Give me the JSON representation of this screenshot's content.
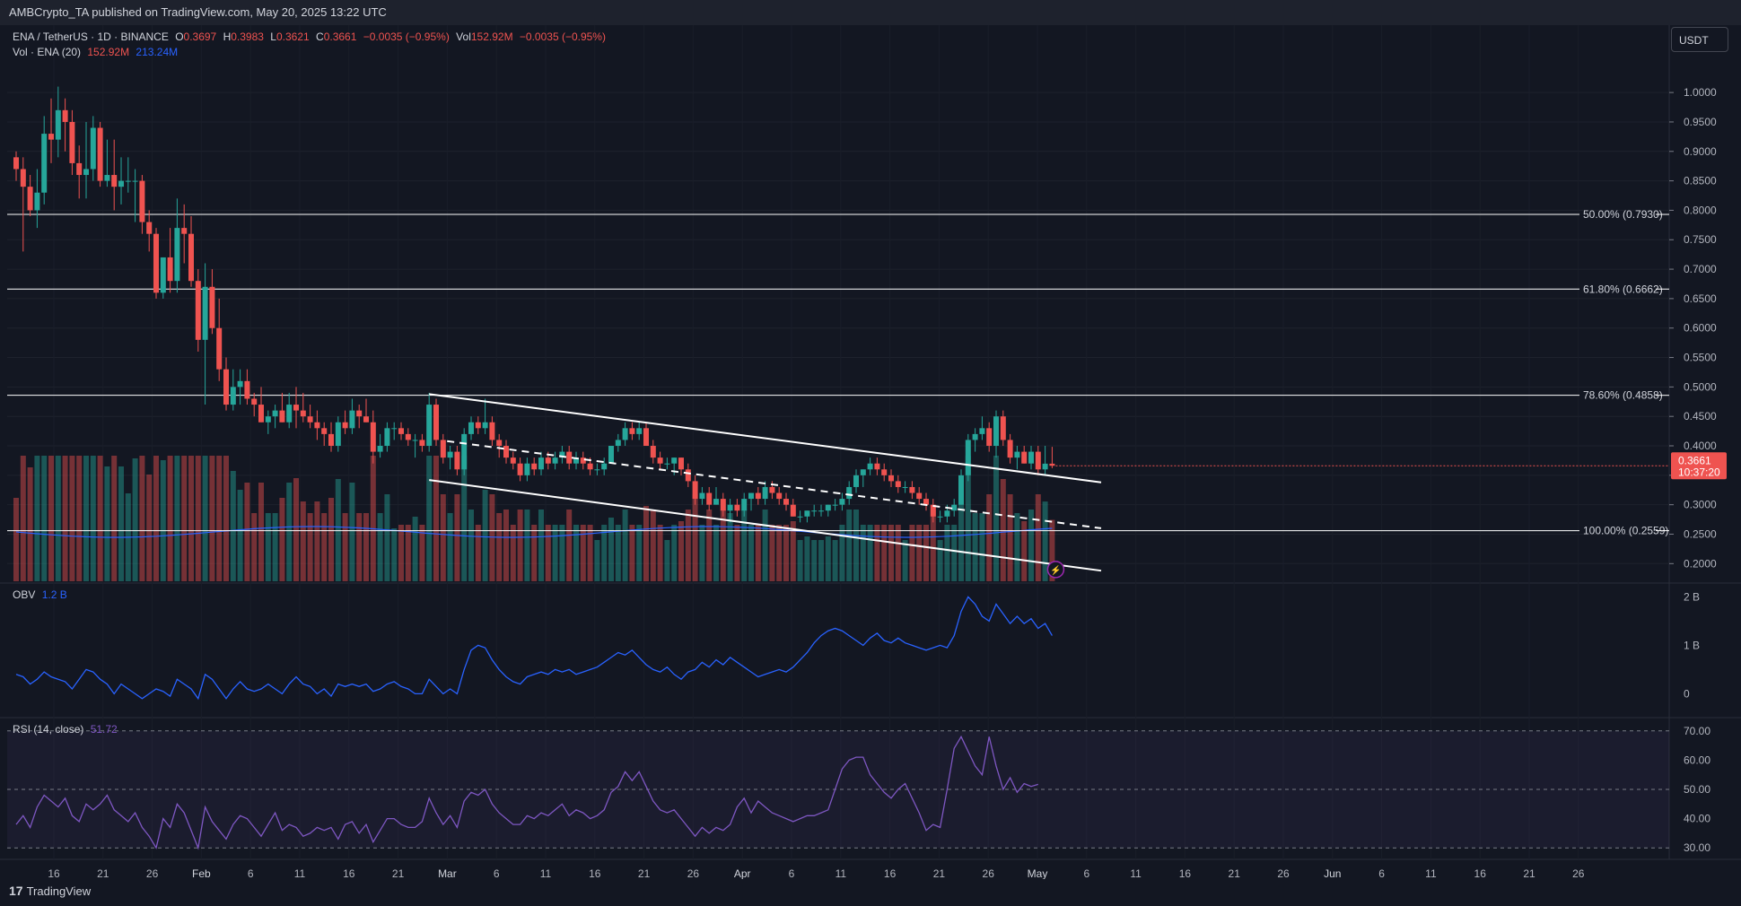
{
  "header": {
    "published": "AMBCrypto_TA published on TradingView.com, May 20, 2025 13:22 UTC"
  },
  "legend": {
    "symbol": "ENA / TetherUS · 1D · BINANCE",
    "o_label": "O",
    "o": "0.3697",
    "h_label": "H",
    "h": "0.3983",
    "l_label": "L",
    "l": "0.3621",
    "c_label": "C",
    "c": "0.3661",
    "change": "−0.0035 (−0.95%)",
    "vol_label": "Vol",
    "vol": "152.92M",
    "vol_change": "−0.0035 (−0.95%)",
    "vol_ind": "Vol · ENA (20)",
    "vol_val": "152.92M",
    "vol_ma": "213.24M",
    "obv_label": "OBV",
    "obv_val": "1.2 B",
    "rsi_label": "RSI (14, close)",
    "rsi_val": "51.72"
  },
  "currency": "USDT",
  "last_price": {
    "price": "0.3661",
    "countdown": "10:37:20"
  },
  "footer": {
    "logo_mark": "17",
    "logo_text": "TradingView"
  },
  "colors": {
    "up": "#26a69a",
    "down": "#ef5350",
    "background": "#131722",
    "obv": "#2962ff",
    "rsi": "#7e57c2",
    "fib": "#ffffff"
  },
  "chart_data": [
    {
      "type": "candlestick",
      "title": "ENA / TetherUS · 1D · BINANCE",
      "y_ticks": [
        "1.0000",
        "0.9500",
        "0.9000",
        "0.8500",
        "0.8000",
        "0.7500",
        "0.7000",
        "0.6500",
        "0.6000",
        "0.5500",
        "0.5000",
        "0.4500",
        "0.4000",
        "0.3500",
        "0.3000",
        "0.2500",
        "0.2000"
      ],
      "ylim": [
        0.17,
        1.02
      ],
      "x_ticks": [
        "16",
        "21",
        "26",
        "Feb",
        "6",
        "11",
        "16",
        "21",
        "Mar",
        "6",
        "11",
        "16",
        "21",
        "26",
        "Apr",
        "6",
        "11",
        "16",
        "21",
        "26",
        "May",
        "6",
        "11",
        "16",
        "21",
        "26",
        "Jun",
        "6",
        "11",
        "16",
        "21",
        "26"
      ],
      "fib_levels": [
        {
          "label": "50.00% (0.7930)",
          "value": 0.793
        },
        {
          "label": "61.80% (0.6662)",
          "value": 0.6662
        },
        {
          "label": "78.60% (0.4858)",
          "value": 0.4858
        },
        {
          "label": "100.00% (0.2559)",
          "value": 0.2559
        }
      ],
      "channel": {
        "upper": [
          [
            0,
            0.4878
          ],
          [
            0,
            0.338
          ]
        ],
        "lower": [
          [
            0,
            0.342
          ],
          [
            0,
            0.188
          ]
        ],
        "mid": [
          [
            0,
            0.408
          ],
          [
            0,
            0.26
          ]
        ],
        "start_index": 59,
        "end_index": 155
      },
      "candles": [
        [
          0.89,
          0.9,
          0.85,
          0.87
        ],
        [
          0.87,
          0.89,
          0.73,
          0.84
        ],
        [
          0.84,
          0.86,
          0.79,
          0.8
        ],
        [
          0.8,
          0.87,
          0.77,
          0.83
        ],
        [
          0.83,
          0.96,
          0.81,
          0.93
        ],
        [
          0.93,
          0.99,
          0.88,
          0.92
        ],
        [
          0.92,
          1.01,
          0.89,
          0.97
        ],
        [
          0.97,
          0.99,
          0.9,
          0.95
        ],
        [
          0.95,
          0.97,
          0.86,
          0.88
        ],
        [
          0.88,
          0.91,
          0.82,
          0.86
        ],
        [
          0.86,
          0.95,
          0.82,
          0.87
        ],
        [
          0.87,
          0.96,
          0.85,
          0.94
        ],
        [
          0.94,
          0.95,
          0.84,
          0.85
        ],
        [
          0.85,
          0.92,
          0.84,
          0.86
        ],
        [
          0.86,
          0.92,
          0.8,
          0.84
        ],
        [
          0.84,
          0.89,
          0.81,
          0.85
        ],
        [
          0.85,
          0.89,
          0.83,
          0.85
        ],
        [
          0.85,
          0.87,
          0.78,
          0.85
        ],
        [
          0.85,
          0.86,
          0.76,
          0.78
        ],
        [
          0.78,
          0.8,
          0.73,
          0.76
        ],
        [
          0.76,
          0.77,
          0.65,
          0.66
        ],
        [
          0.66,
          0.72,
          0.65,
          0.72
        ],
        [
          0.72,
          0.77,
          0.66,
          0.68
        ],
        [
          0.68,
          0.82,
          0.66,
          0.77
        ],
        [
          0.77,
          0.81,
          0.71,
          0.76
        ],
        [
          0.76,
          0.79,
          0.67,
          0.68
        ],
        [
          0.68,
          0.7,
          0.56,
          0.58
        ],
        [
          0.58,
          0.71,
          0.47,
          0.67
        ],
        [
          0.67,
          0.7,
          0.59,
          0.6
        ],
        [
          0.6,
          0.65,
          0.51,
          0.53
        ],
        [
          0.53,
          0.55,
          0.46,
          0.47
        ],
        [
          0.47,
          0.53,
          0.46,
          0.5
        ],
        [
          0.5,
          0.53,
          0.47,
          0.51
        ],
        [
          0.51,
          0.53,
          0.47,
          0.48
        ],
        [
          0.48,
          0.49,
          0.45,
          0.47
        ],
        [
          0.47,
          0.5,
          0.44,
          0.44
        ],
        [
          0.44,
          0.46,
          0.42,
          0.45
        ],
        [
          0.45,
          0.47,
          0.43,
          0.46
        ],
        [
          0.46,
          0.49,
          0.44,
          0.44
        ],
        [
          0.44,
          0.49,
          0.43,
          0.47
        ],
        [
          0.47,
          0.5,
          0.43,
          0.46
        ],
        [
          0.46,
          0.49,
          0.44,
          0.45
        ],
        [
          0.45,
          0.47,
          0.43,
          0.44
        ],
        [
          0.44,
          0.46,
          0.41,
          0.43
        ],
        [
          0.43,
          0.44,
          0.4,
          0.42
        ],
        [
          0.42,
          0.44,
          0.39,
          0.4
        ],
        [
          0.4,
          0.45,
          0.39,
          0.44
        ],
        [
          0.44,
          0.46,
          0.42,
          0.43
        ],
        [
          0.43,
          0.48,
          0.42,
          0.46
        ],
        [
          0.46,
          0.47,
          0.43,
          0.45
        ],
        [
          0.45,
          0.48,
          0.44,
          0.44
        ],
        [
          0.44,
          0.46,
          0.37,
          0.39
        ],
        [
          0.39,
          0.42,
          0.38,
          0.4
        ],
        [
          0.4,
          0.44,
          0.39,
          0.43
        ],
        [
          0.43,
          0.44,
          0.41,
          0.43
        ],
        [
          0.43,
          0.44,
          0.41,
          0.42
        ],
        [
          0.42,
          0.43,
          0.4,
          0.41
        ],
        [
          0.41,
          0.42,
          0.38,
          0.41
        ],
        [
          0.41,
          0.42,
          0.39,
          0.4
        ],
        [
          0.4,
          0.49,
          0.39,
          0.47
        ],
        [
          0.47,
          0.48,
          0.4,
          0.41
        ],
        [
          0.41,
          0.42,
          0.37,
          0.38
        ],
        [
          0.38,
          0.4,
          0.36,
          0.39
        ],
        [
          0.39,
          0.4,
          0.35,
          0.36
        ],
        [
          0.36,
          0.43,
          0.35,
          0.42
        ],
        [
          0.42,
          0.45,
          0.41,
          0.44
        ],
        [
          0.44,
          0.45,
          0.42,
          0.43
        ],
        [
          0.43,
          0.48,
          0.42,
          0.44
        ],
        [
          0.44,
          0.45,
          0.4,
          0.41
        ],
        [
          0.41,
          0.42,
          0.38,
          0.4
        ],
        [
          0.4,
          0.41,
          0.37,
          0.38
        ],
        [
          0.38,
          0.39,
          0.36,
          0.37
        ],
        [
          0.37,
          0.38,
          0.34,
          0.35
        ],
        [
          0.35,
          0.38,
          0.34,
          0.37
        ],
        [
          0.37,
          0.38,
          0.35,
          0.36
        ],
        [
          0.36,
          0.39,
          0.35,
          0.38
        ],
        [
          0.38,
          0.39,
          0.36,
          0.37
        ],
        [
          0.37,
          0.39,
          0.36,
          0.38
        ],
        [
          0.38,
          0.4,
          0.37,
          0.39
        ],
        [
          0.39,
          0.4,
          0.36,
          0.37
        ],
        [
          0.37,
          0.39,
          0.36,
          0.38
        ],
        [
          0.38,
          0.39,
          0.36,
          0.37
        ],
        [
          0.37,
          0.38,
          0.35,
          0.36
        ],
        [
          0.36,
          0.37,
          0.35,
          0.36
        ],
        [
          0.36,
          0.38,
          0.35,
          0.37
        ],
        [
          0.37,
          0.4,
          0.37,
          0.4
        ],
        [
          0.4,
          0.42,
          0.39,
          0.41
        ],
        [
          0.41,
          0.44,
          0.4,
          0.43
        ],
        [
          0.43,
          0.44,
          0.41,
          0.42
        ],
        [
          0.42,
          0.44,
          0.41,
          0.43
        ],
        [
          0.43,
          0.44,
          0.4,
          0.4
        ],
        [
          0.4,
          0.41,
          0.37,
          0.38
        ],
        [
          0.38,
          0.39,
          0.36,
          0.37
        ],
        [
          0.37,
          0.38,
          0.36,
          0.37
        ],
        [
          0.37,
          0.38,
          0.35,
          0.38
        ],
        [
          0.38,
          0.38,
          0.35,
          0.36
        ],
        [
          0.36,
          0.37,
          0.33,
          0.34
        ],
        [
          0.34,
          0.35,
          0.3,
          0.31
        ],
        [
          0.31,
          0.33,
          0.3,
          0.32
        ],
        [
          0.32,
          0.33,
          0.29,
          0.3
        ],
        [
          0.3,
          0.33,
          0.3,
          0.31
        ],
        [
          0.31,
          0.32,
          0.28,
          0.29
        ],
        [
          0.29,
          0.31,
          0.27,
          0.3
        ],
        [
          0.3,
          0.31,
          0.28,
          0.29
        ],
        [
          0.29,
          0.32,
          0.28,
          0.31
        ],
        [
          0.31,
          0.32,
          0.29,
          0.32
        ],
        [
          0.32,
          0.33,
          0.3,
          0.31
        ],
        [
          0.31,
          0.34,
          0.3,
          0.33
        ],
        [
          0.33,
          0.34,
          0.31,
          0.32
        ],
        [
          0.32,
          0.33,
          0.3,
          0.31
        ],
        [
          0.31,
          0.32,
          0.29,
          0.3
        ],
        [
          0.3,
          0.31,
          0.28,
          0.28
        ],
        [
          0.28,
          0.29,
          0.27,
          0.28
        ],
        [
          0.28,
          0.29,
          0.27,
          0.29
        ],
        [
          0.29,
          0.3,
          0.28,
          0.29
        ],
        [
          0.29,
          0.3,
          0.28,
          0.29
        ],
        [
          0.29,
          0.3,
          0.28,
          0.3
        ],
        [
          0.3,
          0.31,
          0.29,
          0.3
        ],
        [
          0.3,
          0.32,
          0.29,
          0.31
        ],
        [
          0.31,
          0.34,
          0.3,
          0.33
        ],
        [
          0.33,
          0.36,
          0.32,
          0.35
        ],
        [
          0.35,
          0.36,
          0.33,
          0.36
        ],
        [
          0.36,
          0.38,
          0.35,
          0.37
        ],
        [
          0.37,
          0.38,
          0.35,
          0.36
        ],
        [
          0.36,
          0.37,
          0.34,
          0.35
        ],
        [
          0.35,
          0.36,
          0.33,
          0.34
        ],
        [
          0.34,
          0.35,
          0.32,
          0.33
        ],
        [
          0.33,
          0.34,
          0.32,
          0.33
        ],
        [
          0.33,
          0.34,
          0.31,
          0.32
        ],
        [
          0.32,
          0.33,
          0.3,
          0.31
        ],
        [
          0.31,
          0.32,
          0.29,
          0.3
        ],
        [
          0.3,
          0.31,
          0.27,
          0.28
        ],
        [
          0.28,
          0.29,
          0.27,
          0.28
        ],
        [
          0.28,
          0.3,
          0.27,
          0.29
        ],
        [
          0.29,
          0.31,
          0.28,
          0.3
        ],
        [
          0.3,
          0.36,
          0.3,
          0.35
        ],
        [
          0.35,
          0.42,
          0.34,
          0.41
        ],
        [
          0.41,
          0.43,
          0.39,
          0.42
        ],
        [
          0.42,
          0.45,
          0.41,
          0.43
        ],
        [
          0.43,
          0.44,
          0.39,
          0.4
        ],
        [
          0.4,
          0.46,
          0.38,
          0.45
        ],
        [
          0.45,
          0.46,
          0.4,
          0.41
        ],
        [
          0.41,
          0.42,
          0.37,
          0.38
        ],
        [
          0.38,
          0.4,
          0.36,
          0.39
        ],
        [
          0.39,
          0.4,
          0.37,
          0.37
        ],
        [
          0.37,
          0.4,
          0.36,
          0.39
        ],
        [
          0.39,
          0.4,
          0.35,
          0.36
        ],
        [
          0.36,
          0.4,
          0.35,
          0.3697
        ],
        [
          0.3697,
          0.3983,
          0.3621,
          0.3661
        ]
      ],
      "volume_ma_label": "213.24M"
    },
    {
      "type": "line",
      "name": "OBV",
      "y_ticks": [
        "2 B",
        "1 B",
        "0"
      ],
      "ylim": [
        -0.4,
        2.1
      ],
      "values": [
        0.4,
        0.35,
        0.2,
        0.3,
        0.45,
        0.35,
        0.3,
        0.25,
        0.1,
        0.3,
        0.5,
        0.45,
        0.3,
        0.2,
        0.0,
        0.2,
        0.1,
        0.0,
        -0.1,
        0.0,
        0.1,
        0.05,
        -0.05,
        0.3,
        0.2,
        0.1,
        -0.1,
        0.4,
        0.3,
        0.1,
        -0.1,
        0.1,
        0.25,
        0.1,
        0.05,
        0.1,
        0.2,
        0.1,
        0.0,
        0.2,
        0.35,
        0.2,
        0.15,
        0.0,
        0.1,
        -0.05,
        0.2,
        0.15,
        0.2,
        0.15,
        0.2,
        0.05,
        0.1,
        0.2,
        0.25,
        0.15,
        0.1,
        0.0,
        0.0,
        0.3,
        0.15,
        0.0,
        0.1,
        0.0,
        0.5,
        0.9,
        1.0,
        0.95,
        0.7,
        0.5,
        0.35,
        0.25,
        0.2,
        0.35,
        0.4,
        0.45,
        0.4,
        0.5,
        0.45,
        0.5,
        0.4,
        0.45,
        0.5,
        0.55,
        0.65,
        0.75,
        0.85,
        0.8,
        0.9,
        0.75,
        0.6,
        0.5,
        0.45,
        0.55,
        0.4,
        0.3,
        0.45,
        0.5,
        0.65,
        0.55,
        0.7,
        0.6,
        0.75,
        0.65,
        0.55,
        0.45,
        0.35,
        0.4,
        0.45,
        0.5,
        0.45,
        0.55,
        0.7,
        0.85,
        1.05,
        1.2,
        1.3,
        1.35,
        1.3,
        1.2,
        1.1,
        1.0,
        1.15,
        1.25,
        1.1,
        1.05,
        1.15,
        1.05,
        1.0,
        0.95,
        0.9,
        0.95,
        1.0,
        0.95,
        1.2,
        1.7,
        2.0,
        1.85,
        1.6,
        1.5,
        1.85,
        1.65,
        1.45,
        1.6,
        1.45,
        1.55,
        1.35,
        1.45,
        1.2
      ]
    },
    {
      "type": "line",
      "name": "RSI (14, close)",
      "y_ticks": [
        "70.00",
        "60.00",
        "50.00",
        "40.00",
        "30.00"
      ],
      "ylim": [
        27,
        73
      ],
      "band": [
        30,
        70
      ],
      "values": [
        38,
        41,
        37,
        44,
        48,
        46,
        44,
        47,
        41,
        39,
        45,
        43,
        45,
        48,
        43,
        41,
        39,
        42,
        37,
        34,
        30,
        40,
        37,
        45,
        42,
        36,
        30,
        44,
        39,
        36,
        33,
        38,
        41,
        40,
        37,
        34,
        38,
        42,
        36,
        38,
        37,
        34,
        35,
        37,
        36,
        37,
        33,
        38,
        39,
        35,
        38,
        32,
        36,
        40,
        40,
        38,
        37,
        37,
        39,
        47,
        42,
        38,
        41,
        37,
        46,
        49,
        48,
        50,
        45,
        42,
        40,
        38,
        38,
        41,
        40,
        42,
        41,
        43,
        45,
        41,
        43,
        42,
        40,
        41,
        43,
        49,
        51,
        56,
        53,
        56,
        51,
        46,
        43,
        42,
        43,
        40,
        37,
        34,
        37,
        35,
        37,
        36,
        38,
        44,
        47,
        42,
        46,
        44,
        42,
        41,
        40,
        39,
        40,
        41,
        41,
        42,
        43,
        50,
        57,
        60,
        61,
        61,
        55,
        52,
        49,
        47,
        50,
        52,
        47,
        42,
        36,
        38,
        37,
        50,
        64,
        68,
        63,
        58,
        55,
        68,
        58,
        50,
        54,
        49,
        52,
        51,
        51.72
      ]
    }
  ]
}
